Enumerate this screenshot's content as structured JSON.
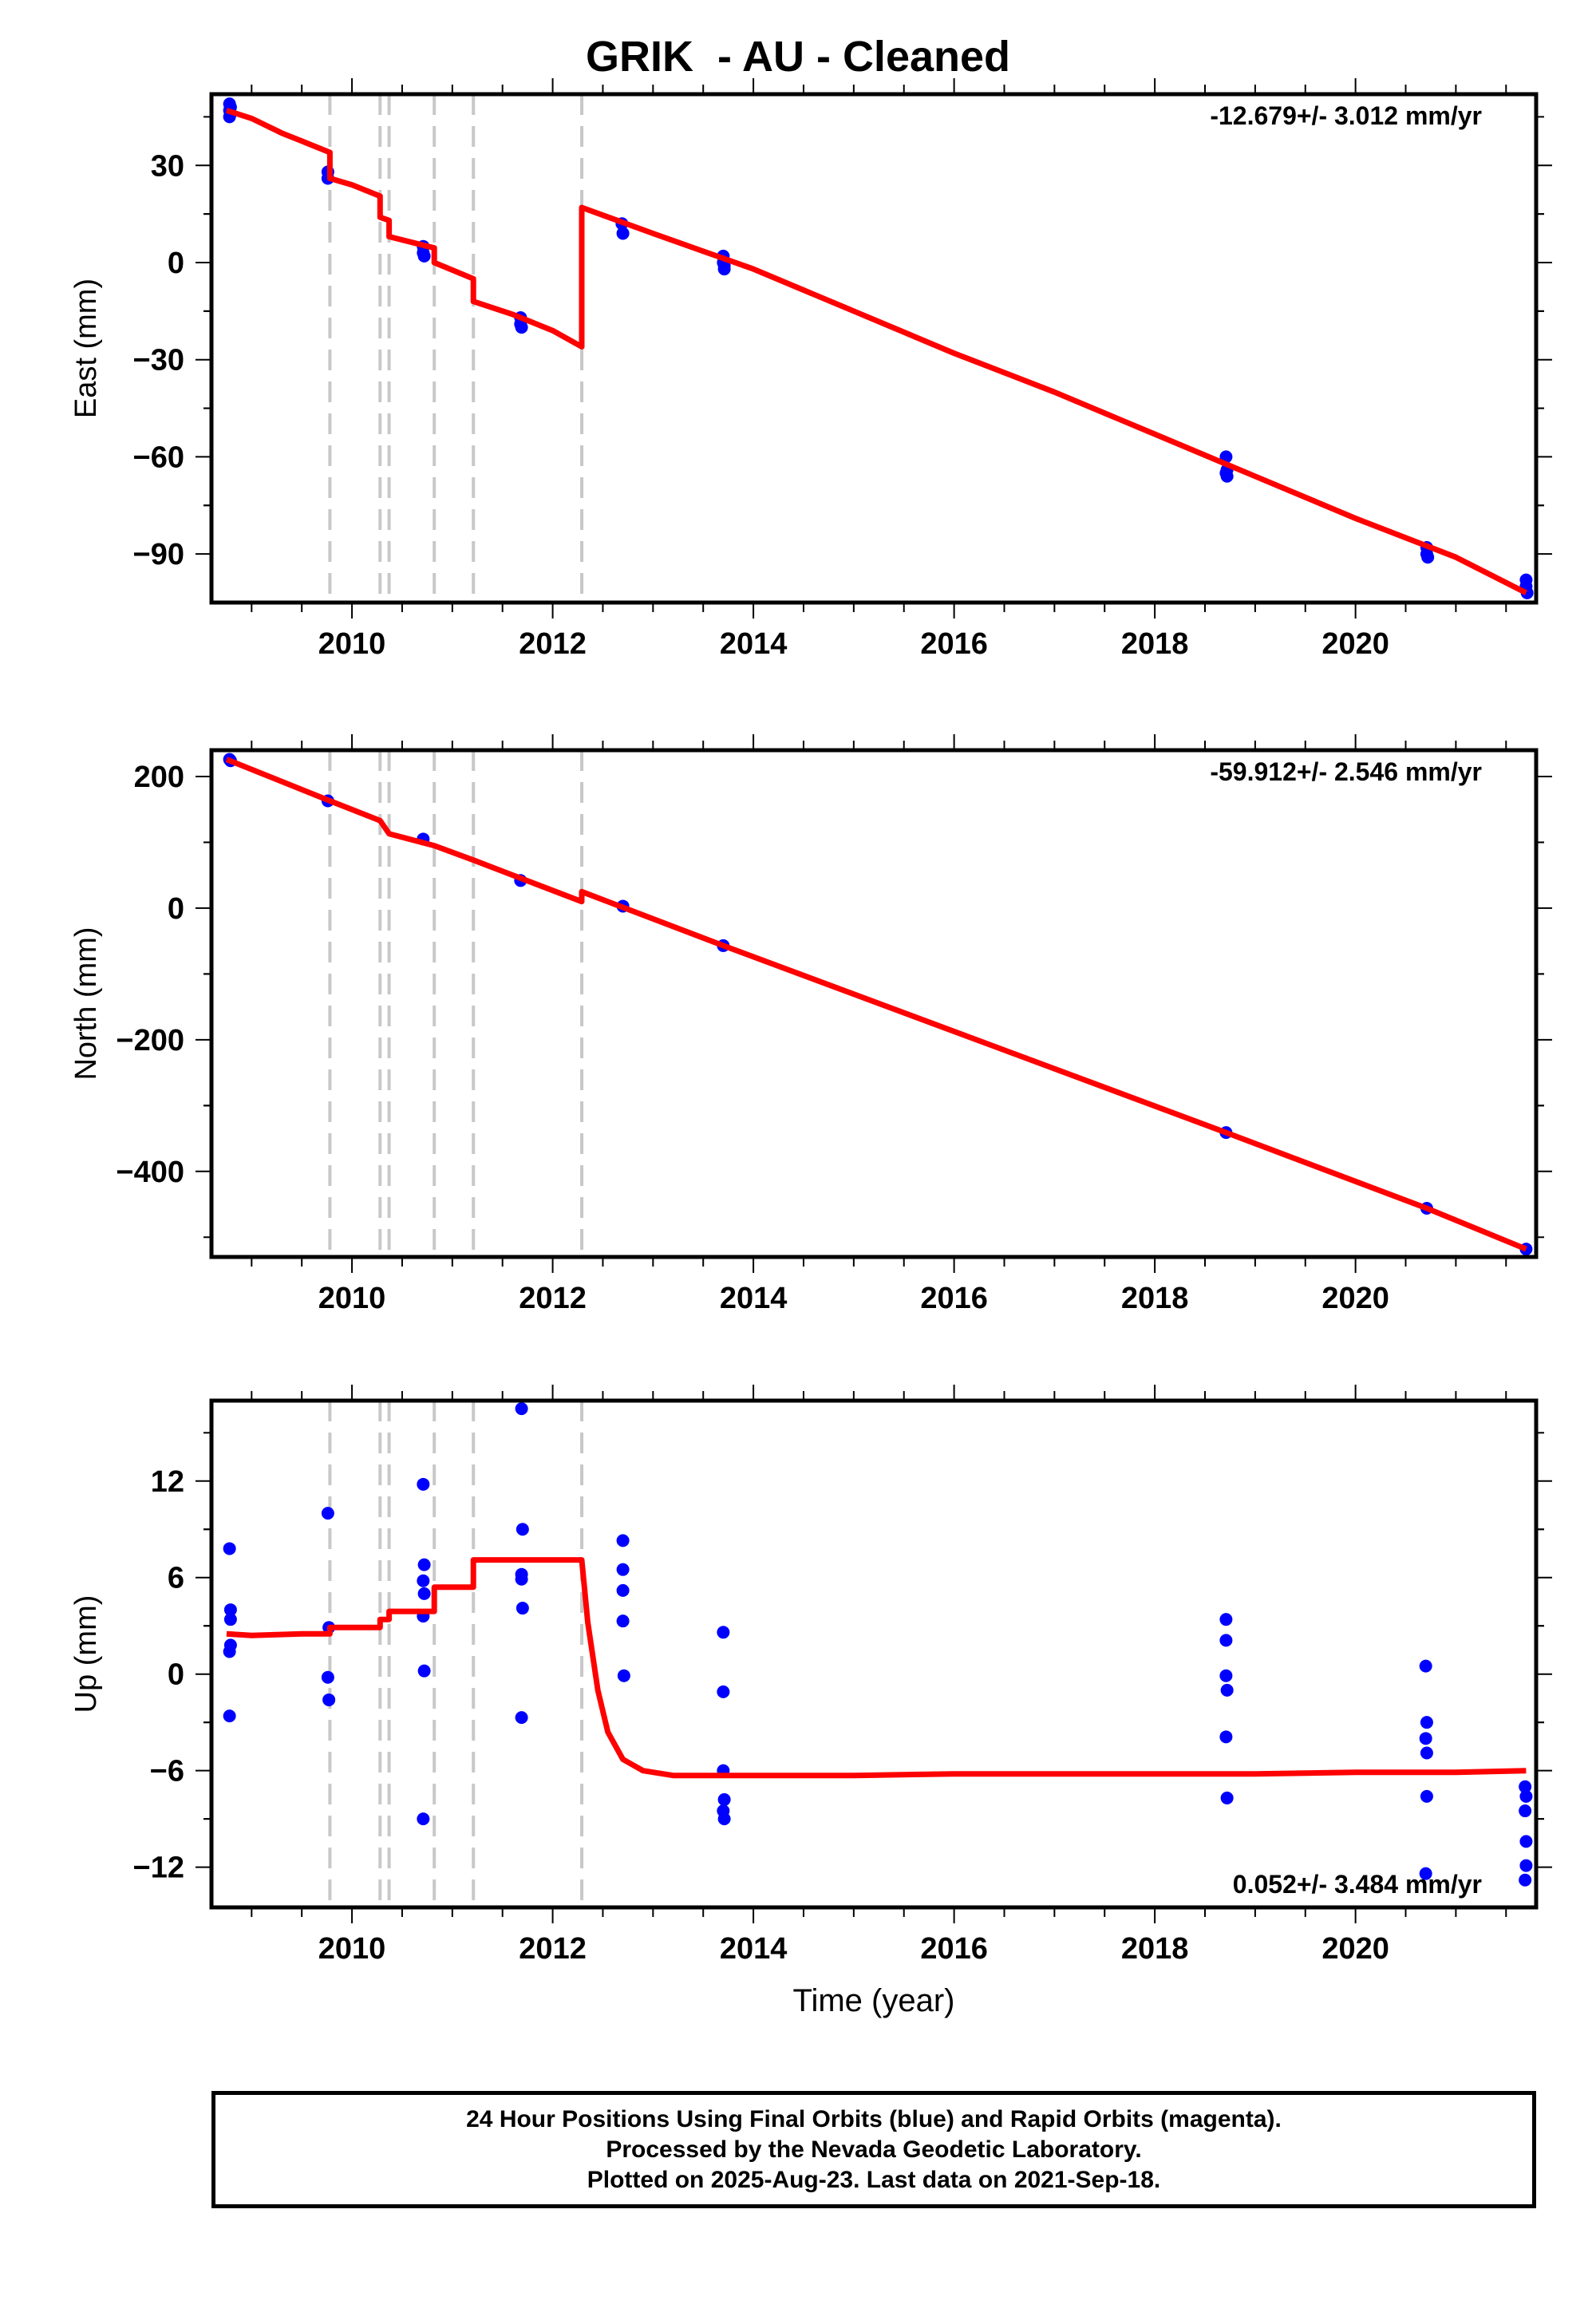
{
  "figure": {
    "title": "GRIK  - AU - Cleaned",
    "footer": [
      "24 Hour Positions Using Final Orbits (blue) and Rapid Orbits (magenta).",
      "Processed by the Nevada Geodetic Laboratory.",
      "Plotted on 2025-Aug-23. Last data on 2021-Sep-18."
    ]
  },
  "colors": {
    "points": "#0000ff",
    "model": "#ff0000",
    "event_lines": "#c8c8c8",
    "axes": "#000000"
  },
  "chart_data": [
    {
      "type": "scatter",
      "title": "GRIK  - AU - Cleaned",
      "xlabel": "",
      "ylabel": "East (mm)",
      "xlim": [
        2008.6,
        2021.8
      ],
      "ylim": [
        -105,
        52
      ],
      "xticks": [
        2010,
        2012,
        2014,
        2016,
        2018,
        2020
      ],
      "yticks": [
        -90,
        -60,
        -30,
        0,
        30
      ],
      "rate_annotation": "-12.679+/- 3.012 mm/yr",
      "event_lines_x": [
        2009.78,
        2010.28,
        2010.37,
        2010.82,
        2011.21,
        2012.29
      ],
      "series": [
        {
          "kind": "points",
          "x": [
            2008.78,
            2008.78,
            2008.78,
            2008.79,
            2008.79,
            2009.76,
            2009.76,
            2010.71,
            2010.71,
            2010.72,
            2011.68,
            2011.68,
            2011.69,
            2012.69,
            2012.7,
            2013.7,
            2013.7,
            2013.71,
            2013.71,
            2018.71,
            2018.71,
            2018.72,
            2018.72,
            2020.71,
            2020.71,
            2020.72,
            2021.7,
            2021.7,
            2021.71
          ],
          "y": [
            49,
            47,
            45,
            48,
            46,
            28,
            26,
            5,
            3,
            2,
            -17,
            -19,
            -20,
            12,
            9,
            2,
            0,
            -1,
            -2,
            -60,
            -65,
            -66,
            -64,
            -88,
            -90,
            -91,
            -98,
            -100,
            -102
          ]
        },
        {
          "kind": "model",
          "x": [
            2008.75,
            2009.0,
            2009.3,
            2009.5,
            2009.78,
            2009.78,
            2010.0,
            2010.28,
            2010.28,
            2010.37,
            2010.37,
            2010.82,
            2010.82,
            2011.21,
            2011.21,
            2011.6,
            2012.0,
            2012.29,
            2012.29,
            2013.0,
            2014.0,
            2015.0,
            2016.0,
            2017.0,
            2018.0,
            2019.0,
            2020.0,
            2021.0,
            2021.7
          ],
          "y": [
            47,
            44.5,
            40,
            37.5,
            34,
            26,
            24,
            20.5,
            14,
            13,
            8,
            4.5,
            0,
            -5,
            -12,
            -16,
            -21,
            -26,
            17,
            9,
            -2,
            -15,
            -28,
            -40,
            -53,
            -66,
            -79,
            -91,
            -102
          ]
        }
      ]
    },
    {
      "type": "scatter",
      "title": "",
      "xlabel": "",
      "ylabel": "North (mm)",
      "xlim": [
        2008.6,
        2021.8
      ],
      "ylim": [
        -530,
        240
      ],
      "xticks": [
        2010,
        2012,
        2014,
        2016,
        2018,
        2020
      ],
      "yticks": [
        -400,
        -200,
        0,
        200
      ],
      "rate_annotation": "-59.912+/- 2.546 mm/yr",
      "event_lines_x": [
        2009.78,
        2010.28,
        2010.37,
        2010.82,
        2011.21,
        2012.29
      ],
      "series": [
        {
          "kind": "points",
          "x": [
            2008.78,
            2008.79,
            2009.76,
            2010.71,
            2011.68,
            2012.7,
            2013.7,
            2018.71,
            2020.71,
            2021.7
          ],
          "y": [
            226,
            224,
            163,
            105,
            42,
            3,
            -57,
            -341,
            -456,
            -518
          ]
        },
        {
          "kind": "model",
          "x": [
            2008.75,
            2009.78,
            2010.28,
            2010.37,
            2010.82,
            2011.21,
            2012.29,
            2012.29,
            2013.7,
            2018.71,
            2020.71,
            2021.7
          ],
          "y": [
            226,
            163,
            133,
            113,
            95,
            73,
            10,
            25,
            -57,
            -341,
            -456,
            -518
          ]
        }
      ]
    },
    {
      "type": "scatter",
      "title": "",
      "xlabel": "Time (year)",
      "ylabel": "Up (mm)",
      "xlim": [
        2008.6,
        2021.8
      ],
      "ylim": [
        -14.5,
        17
      ],
      "xticks": [
        2010,
        2012,
        2014,
        2016,
        2018,
        2020
      ],
      "yticks": [
        -12,
        -6,
        0,
        6,
        12
      ],
      "rate_annotation": "0.052+/- 3.484 mm/yr",
      "event_lines_x": [
        2009.78,
        2010.28,
        2010.37,
        2010.82,
        2011.21,
        2012.29
      ],
      "series": [
        {
          "kind": "points",
          "x": [
            2008.78,
            2008.79,
            2008.79,
            2008.78,
            2008.79,
            2008.78,
            2009.76,
            2009.77,
            2009.76,
            2009.77,
            2010.71,
            2010.72,
            2010.71,
            2010.72,
            2010.71,
            2010.72,
            2010.71,
            2011.69,
            2011.7,
            2011.69,
            2011.69,
            2011.7,
            2011.69,
            2012.7,
            2012.7,
            2012.7,
            2012.7,
            2012.71,
            2013.7,
            2013.7,
            2013.7,
            2013.71,
            2013.7,
            2013.71,
            2018.71,
            2018.71,
            2018.71,
            2018.72,
            2018.71,
            2018.72,
            2020.7,
            2020.71,
            2020.7,
            2020.71,
            2020.71,
            2020.7,
            2021.69,
            2021.7,
            2021.69,
            2021.7,
            2021.7,
            2021.69
          ],
          "y": [
            7.8,
            4.0,
            3.4,
            1.4,
            1.8,
            -2.6,
            10.0,
            2.9,
            -0.2,
            -1.6,
            11.8,
            6.8,
            5.8,
            5.0,
            3.6,
            0.2,
            -9.0,
            16.5,
            9.0,
            6.2,
            5.9,
            4.1,
            -2.7,
            8.3,
            6.5,
            5.2,
            3.3,
            -0.1,
            2.6,
            -1.1,
            -6.0,
            -7.8,
            -8.5,
            -9.0,
            3.4,
            2.1,
            -0.1,
            -1.0,
            -3.9,
            -7.7,
            0.5,
            -3.0,
            -4.0,
            -4.9,
            -7.6,
            -12.4,
            -7.0,
            -7.6,
            -8.5,
            -10.4,
            -11.9,
            -12.8
          ]
        },
        {
          "kind": "model",
          "x": [
            2008.75,
            2009.0,
            2009.5,
            2009.78,
            2009.78,
            2010.28,
            2010.28,
            2010.37,
            2010.37,
            2010.82,
            2010.82,
            2011.21,
            2011.21,
            2012.29,
            2012.35,
            2012.45,
            2012.55,
            2012.7,
            2012.9,
            2013.2,
            2014.0,
            2015.0,
            2016.0,
            2017.0,
            2018.0,
            2019.0,
            2020.0,
            2021.0,
            2021.7
          ],
          "y": [
            2.5,
            2.4,
            2.5,
            2.5,
            2.9,
            2.9,
            3.4,
            3.4,
            3.9,
            3.9,
            5.4,
            5.4,
            7.1,
            7.1,
            3.2,
            -1.0,
            -3.6,
            -5.3,
            -6.0,
            -6.3,
            -6.3,
            -6.3,
            -6.2,
            -6.2,
            -6.2,
            -6.2,
            -6.1,
            -6.1,
            -6.0
          ]
        }
      ]
    }
  ]
}
